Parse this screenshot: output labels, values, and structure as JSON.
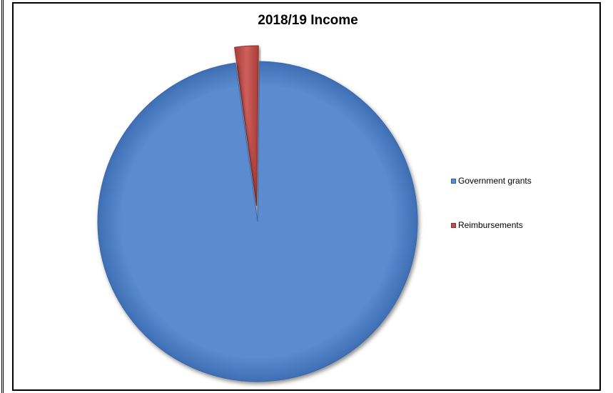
{
  "chart_data": {
    "type": "pie",
    "title": "2018/19 Income",
    "slices": [
      {
        "label": "Government grants",
        "value": 97.6,
        "color": "#5b8bd0"
      },
      {
        "label": "Reimbursements",
        "value": 2.4,
        "color": "#c0504d"
      }
    ],
    "legend_position": "right",
    "exploded_slice": "Reimbursements"
  }
}
